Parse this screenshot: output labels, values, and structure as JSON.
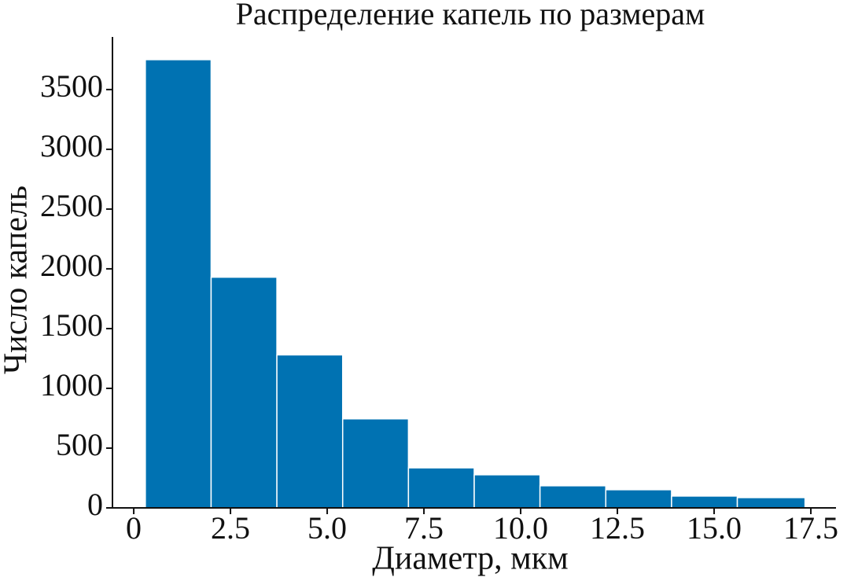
{
  "chart_data": {
    "type": "histogram",
    "title": "Распределение капель по размерам",
    "x_label": "Диаметр, мкм",
    "y_label": "Число капель",
    "bins": [
      0.3,
      2.0,
      3.7,
      5.4,
      7.1,
      8.8,
      10.5,
      12.2,
      13.9,
      15.6,
      17.35
    ],
    "counts": [
      3750,
      1930,
      1280,
      745,
      335,
      277,
      185,
      152,
      99,
      86
    ],
    "color": "#0072b2",
    "xlim": [
      -0.55,
      18.15
    ],
    "ylim": [
      0,
      3940
    ],
    "xticks": [
      0,
      2.5,
      {
        "value": 5,
        "label": "5.0"
      },
      7.5,
      {
        "value": 10,
        "label": "10.0"
      },
      12.5,
      {
        "value": 15,
        "label": "15.0"
      },
      17.5
    ],
    "yticks": [
      0,
      500,
      1000,
      1500,
      2000,
      2500,
      3000,
      3500
    ]
  }
}
